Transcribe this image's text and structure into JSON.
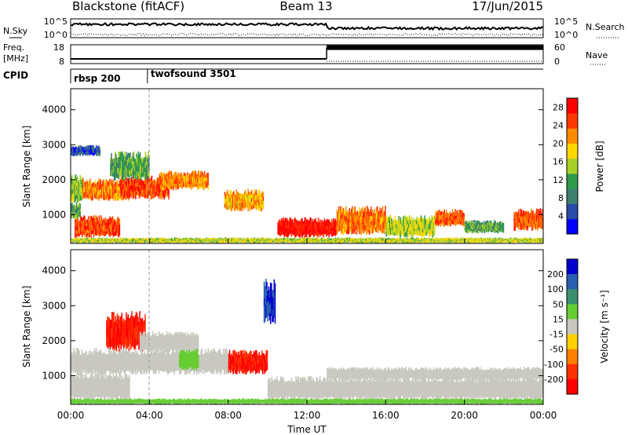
{
  "header": {
    "title": "Blackstone (fitACF)",
    "beam": "Beam 13",
    "date": "17/Jun/2015"
  },
  "noise_panel": {
    "left_label": "N.Sky",
    "right_label": "N.Search",
    "left_ticks": [
      "10^5",
      "10^0"
    ],
    "right_ticks": [
      "10^5",
      "10^0"
    ]
  },
  "freq_panel": {
    "left_label_1": "Freq.",
    "left_label_2": "[MHz]",
    "right_label": "Nave",
    "left_ticks": [
      "18",
      "8"
    ],
    "right_ticks": [
      "60",
      "0"
    ],
    "freq_segments": [
      {
        "start_h": 0.0,
        "end_h": 13.0,
        "freq_mhz": 10.5
      },
      {
        "start_h": 13.0,
        "end_h": 24.0,
        "freq_mhz": 16.5
      }
    ]
  },
  "cpid_panel": {
    "label": "CPID",
    "modes": [
      {
        "name": "rbsp 200",
        "start_h": 0.0,
        "end_h": 3.9
      },
      {
        "name": "twofsound 3501",
        "start_h": 3.9,
        "end_h": 24.0
      }
    ]
  },
  "colors": {
    "power_scale": [
      "#0000ff",
      "#2a4aa8",
      "#3f7f6e",
      "#2f9b4a",
      "#a8cf28",
      "#ffd700",
      "#ff8c00",
      "#ff3a00",
      "#ff0000"
    ],
    "velocity_scale": [
      "#0000cc",
      "#2a60b0",
      "#3b8f70",
      "#66cc33",
      "#c8c8c0",
      "#ffd000",
      "#ff8000",
      "#ff3000",
      "#ff0000"
    ]
  },
  "chart_data": [
    {
      "type": "heatmap",
      "name": "power",
      "xlabel": "Time UT",
      "ylabel": "Slant Range [km]",
      "xlim": [
        0,
        24
      ],
      "ylim": [
        180,
        4600
      ],
      "yticks": [
        "1000",
        "2000",
        "3000",
        "4000"
      ],
      "xticks": [
        "00:00",
        "04:00",
        "08:00",
        "12:00",
        "16:00",
        "20:00",
        "00:00"
      ],
      "colorbar": {
        "label": "Power [dB]",
        "ticks": [
          "4",
          "8",
          "12",
          "16",
          "20",
          "24",
          "28"
        ],
        "range": [
          0,
          30
        ]
      },
      "regions": [
        {
          "t0": 0.0,
          "t1": 0.6,
          "r0": 1400,
          "r1": 2050,
          "level": 14
        },
        {
          "t0": 0.6,
          "t1": 3.0,
          "r0": 1450,
          "r1": 1950,
          "level": 22
        },
        {
          "t0": 2.5,
          "t1": 5.0,
          "r0": 1500,
          "r1": 2050,
          "level": 25
        },
        {
          "t0": 4.5,
          "t1": 7.0,
          "r0": 1750,
          "r1": 2200,
          "level": 22
        },
        {
          "t0": 2.0,
          "t1": 4.0,
          "r0": 2050,
          "r1": 2700,
          "level": 12
        },
        {
          "t0": 0.2,
          "t1": 2.5,
          "r0": 400,
          "r1": 900,
          "level": 25
        },
        {
          "t0": 0.0,
          "t1": 0.5,
          "r0": 900,
          "r1": 1300,
          "level": 12
        },
        {
          "t0": 0.0,
          "t1": 1.5,
          "r0": 2700,
          "r1": 2950,
          "level": 5
        },
        {
          "t0": 7.8,
          "t1": 9.8,
          "r0": 1150,
          "r1": 1650,
          "level": 20
        },
        {
          "t0": 10.5,
          "t1": 13.5,
          "r0": 400,
          "r1": 850,
          "level": 28
        },
        {
          "t0": 13.5,
          "t1": 16.0,
          "r0": 500,
          "r1": 1150,
          "level": 23
        },
        {
          "t0": 16.0,
          "t1": 18.5,
          "r0": 400,
          "r1": 900,
          "level": 16
        },
        {
          "t0": 18.5,
          "t1": 20.0,
          "r0": 700,
          "r1": 1100,
          "level": 24
        },
        {
          "t0": 20.0,
          "t1": 22.0,
          "r0": 500,
          "r1": 800,
          "level": 12
        },
        {
          "t0": 22.5,
          "t1": 24.0,
          "r0": 600,
          "r1": 1100,
          "level": 24
        },
        {
          "t0": 0.0,
          "t1": 24.0,
          "r0": 200,
          "r1": 330,
          "level": 16
        }
      ]
    },
    {
      "type": "heatmap",
      "name": "velocity",
      "xlabel": "Time UT",
      "ylabel": "Slant Range [km]",
      "xlim": [
        0,
        24
      ],
      "ylim": [
        180,
        4600
      ],
      "yticks": [
        "1000",
        "2000",
        "3000",
        "4000"
      ],
      "xticks": [
        "00:00",
        "04:00",
        "08:00",
        "12:00",
        "16:00",
        "20:00",
        "00:00"
      ],
      "colorbar": {
        "label": "Velocity [m s⁻¹]",
        "ticks": [
          "200",
          "100",
          "50",
          "15",
          "-15",
          "-50",
          "-100",
          "-200"
        ]
      },
      "regions": [
        {
          "t0": 0.0,
          "t1": 8.0,
          "r0": 1100,
          "r1": 1700,
          "level": 0
        },
        {
          "t0": 0.0,
          "t1": 3.0,
          "r0": 350,
          "r1": 1000,
          "level": 0
        },
        {
          "t0": 1.8,
          "t1": 3.8,
          "r0": 1800,
          "r1": 2700,
          "level": -200
        },
        {
          "t0": 3.5,
          "t1": 6.5,
          "r0": 1700,
          "r1": 2200,
          "level": 0
        },
        {
          "t0": 5.5,
          "t1": 6.5,
          "r0": 1200,
          "r1": 1700,
          "level": 40
        },
        {
          "t0": 8.0,
          "t1": 10.0,
          "r0": 1100,
          "r1": 1650,
          "level": -200
        },
        {
          "t0": 10.0,
          "t1": 24.0,
          "r0": 350,
          "r1": 900,
          "level": 0
        },
        {
          "t0": 13.0,
          "t1": 24.0,
          "r0": 900,
          "r1": 1200,
          "level": 0
        },
        {
          "t0": 9.8,
          "t1": 10.4,
          "r0": 2600,
          "r1": 3600,
          "level": 200
        },
        {
          "t0": 0.0,
          "t1": 24.0,
          "r0": 200,
          "r1": 330,
          "level": 40
        }
      ]
    }
  ]
}
